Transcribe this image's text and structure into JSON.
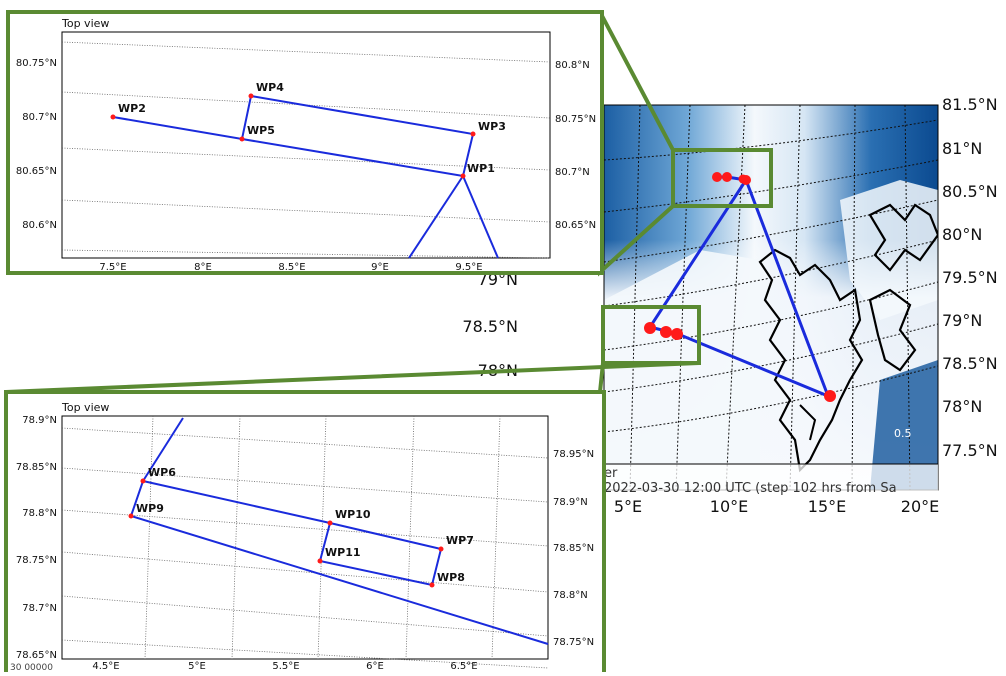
{
  "main_map": {
    "lat_labels_right": [
      "81.5°N",
      "81°N",
      "80.5°N",
      "80°N",
      "79.5°N",
      "79°N",
      "78.5°N",
      "78°N",
      "77.5°N"
    ],
    "lat_labels_left": [
      "79°N",
      "78.5°N",
      "78°N"
    ],
    "lon_labels_bottom": [
      "5°E",
      "10°E",
      "15°E",
      "20°E"
    ],
    "caption_partial": "er",
    "caption": "2022-03-30 12:00 UTC (step 102 hrs from Sa",
    "contour_labels": [
      "0.5"
    ],
    "colors": {
      "ocean_low": "#f2f7fc",
      "ice_mid": "#6aa6d6",
      "ice_high": "#0d4f95",
      "route": "#1a2bdc",
      "waypoint": "#ff1a1a",
      "box": "#5a8a32"
    }
  },
  "inset_top": {
    "title": "Top view",
    "lat_labels_left": [
      "80.75°N",
      "80.7°N",
      "80.65°N",
      "80.6°N"
    ],
    "lat_labels_right": [
      "80.8°N",
      "80.75°N",
      "80.7°N",
      "80.65°N"
    ],
    "lon_labels": [
      "7.5°E",
      "8°E",
      "8.5°E",
      "9°E",
      "9.5°E"
    ],
    "waypoints": [
      "WP1",
      "WP2",
      "WP3",
      "WP4",
      "WP5"
    ]
  },
  "inset_bottom": {
    "title": "Top view",
    "lat_labels_left": [
      "78.9°N",
      "78.85°N",
      "78.8°N",
      "78.75°N",
      "78.7°N",
      "78.65°N"
    ],
    "lat_labels_right": [
      "78.95°N",
      "78.9°N",
      "78.85°N",
      "78.8°N",
      "78.75°N"
    ],
    "lon_labels": [
      "4.5°E",
      "5°E",
      "5.5°E",
      "6°E",
      "6.5°E"
    ],
    "corner_text": "30 00000",
    "waypoints": [
      "WP6",
      "WP7",
      "WP8",
      "WP9",
      "WP10",
      "WP11"
    ]
  }
}
